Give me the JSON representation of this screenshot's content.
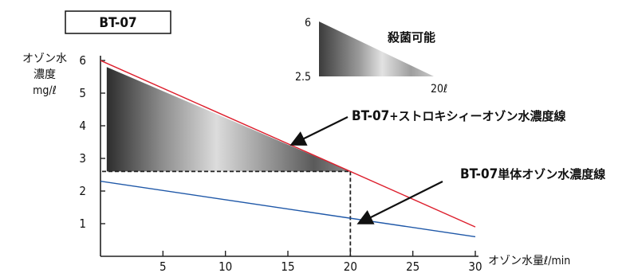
{
  "title_box": "BT-07",
  "inset": {
    "top_value": "6",
    "bottom_value": "2.5",
    "right_value": "20ℓ",
    "caption": "殺菌可能"
  },
  "annotations": {
    "combined_prefix": "BT-07",
    "combined_suffix": "+ストロキシィーオゾン水濃度線",
    "single_prefix": "BT-07",
    "single_suffix": "単体オゾン水濃度線"
  },
  "colors": {
    "combined_line": "#dd1f2d",
    "single_line": "#1f58a8",
    "axis": "#222222",
    "guide": "#222222"
  },
  "chart_data": {
    "type": "line",
    "title": "BT-07",
    "xlabel": "オゾン水量ℓ/min",
    "ylabel": [
      "オゾン水",
      "濃度",
      "mg/ℓ"
    ],
    "xlim": [
      0,
      30
    ],
    "ylim": [
      0,
      6
    ],
    "x_ticks": [
      5,
      10,
      15,
      20,
      25,
      30
    ],
    "y_ticks": [
      1,
      2,
      3,
      4,
      5,
      6
    ],
    "series": [
      {
        "name": "BT-07+ストロキシィーオゾン水濃度線",
        "x": [
          0,
          30
        ],
        "y": [
          6.0,
          0.9
        ]
      },
      {
        "name": "BT-07単体オゾン水濃度線",
        "x": [
          0,
          30
        ],
        "y": [
          2.3,
          0.6
        ]
      }
    ],
    "shaded_region": {
      "x": [
        0.5,
        20
      ],
      "y_low": 2.6,
      "y_high_start": 5.8
    },
    "guide_lines": {
      "x": 20,
      "y": 2.6
    }
  }
}
